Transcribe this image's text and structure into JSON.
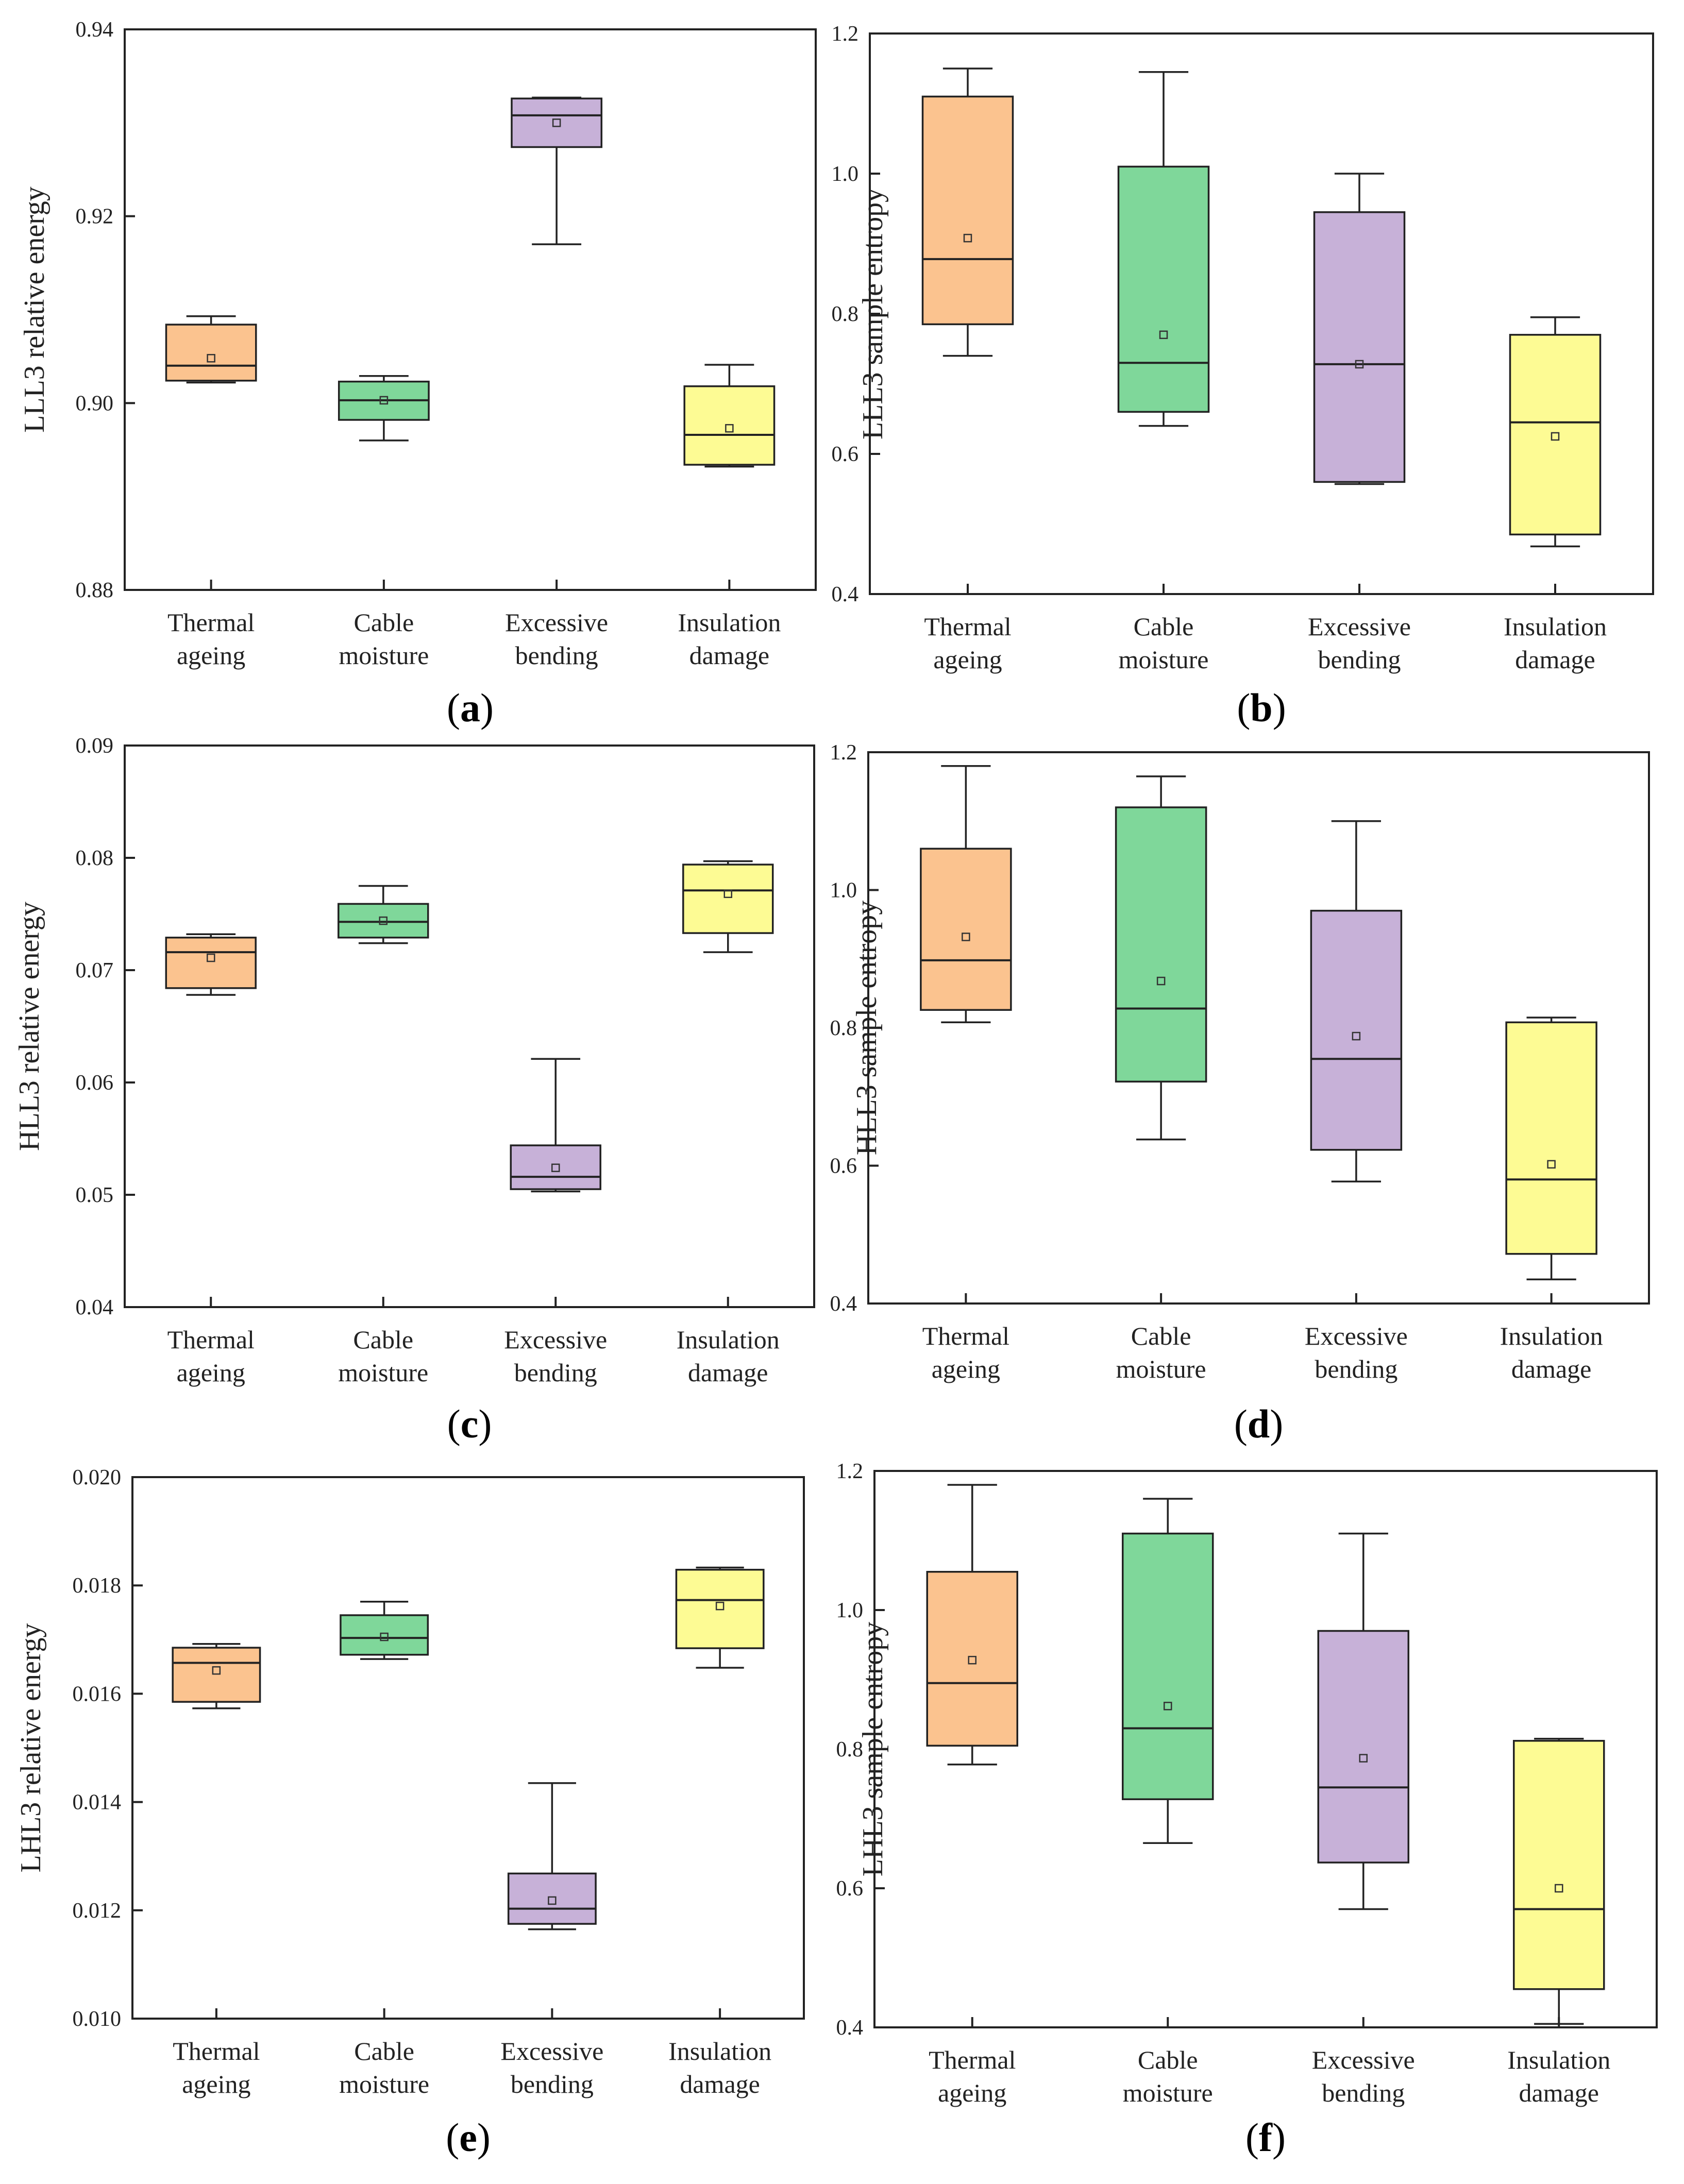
{
  "figure": {
    "colors": {
      "Thermal ageing": "#fbc38f",
      "Cable moisture": "#7fd79a",
      "Excessive bending": "#c7b1d8",
      "Insulation damage": "#fdfb94"
    }
  },
  "chart_data": [
    {
      "id": "a",
      "panel": "a",
      "type": "box",
      "ylabel": "LLL3 relative energy",
      "ylim": [
        0.88,
        0.94
      ],
      "yticks": [
        "0.88",
        "0.90",
        "0.92",
        "0.94"
      ],
      "categories": [
        [
          "Thermal",
          "ageing"
        ],
        [
          "Cable",
          "moisture"
        ],
        [
          "Excessive",
          "bending"
        ],
        [
          "Insulation",
          "damage"
        ]
      ],
      "boxes": [
        {
          "min": 0.9022,
          "q1": 0.9024,
          "median": 0.904,
          "q3": 0.9084,
          "max": 0.9093,
          "mean": 0.9048
        },
        {
          "min": 0.896,
          "q1": 0.8982,
          "median": 0.9003,
          "q3": 0.9023,
          "max": 0.9029,
          "mean": 0.9003
        },
        {
          "min": 0.917,
          "q1": 0.9274,
          "median": 0.9308,
          "q3": 0.9326,
          "max": 0.9327,
          "mean": 0.93
        },
        {
          "min": 0.8932,
          "q1": 0.8934,
          "median": 0.8966,
          "q3": 0.9018,
          "max": 0.9041,
          "mean": 0.8973
        }
      ]
    },
    {
      "id": "b",
      "panel": "b",
      "type": "box",
      "ylabel": "LLL3 sample entropy",
      "ylim": [
        0.4,
        1.2
      ],
      "yticks": [
        "0.4",
        "0.6",
        "0.8",
        "1.0",
        "1.2"
      ],
      "categories": [
        [
          "Thermal",
          "ageing"
        ],
        [
          "Cable",
          "moisture"
        ],
        [
          "Excessive",
          "bending"
        ],
        [
          "Insulation",
          "damage"
        ]
      ],
      "boxes": [
        {
          "min": 0.74,
          "q1": 0.785,
          "median": 0.878,
          "q3": 1.11,
          "max": 1.15,
          "mean": 0.908
        },
        {
          "min": 0.64,
          "q1": 0.66,
          "median": 0.73,
          "q3": 1.01,
          "max": 1.145,
          "mean": 0.77
        },
        {
          "min": 0.557,
          "q1": 0.56,
          "median": 0.728,
          "q3": 0.945,
          "max": 1.0,
          "mean": 0.728
        },
        {
          "min": 0.468,
          "q1": 0.485,
          "median": 0.645,
          "q3": 0.77,
          "max": 0.795,
          "mean": 0.625
        }
      ]
    },
    {
      "id": "c",
      "panel": "c",
      "type": "box",
      "ylabel": "HLL3 relative energy",
      "ylim": [
        0.04,
        0.09
      ],
      "yticks": [
        "0.04",
        "0.05",
        "0.06",
        "0.07",
        "0.08",
        "0.09"
      ],
      "categories": [
        [
          "Thermal",
          "ageing"
        ],
        [
          "Cable",
          "moisture"
        ],
        [
          "Excessive",
          "bending"
        ],
        [
          "Insulation",
          "damage"
        ]
      ],
      "boxes": [
        {
          "min": 0.0678,
          "q1": 0.0684,
          "median": 0.0716,
          "q3": 0.0729,
          "max": 0.0732,
          "mean": 0.0711
        },
        {
          "min": 0.0724,
          "q1": 0.0729,
          "median": 0.0743,
          "q3": 0.0759,
          "max": 0.0775,
          "mean": 0.0744
        },
        {
          "min": 0.0503,
          "q1": 0.0505,
          "median": 0.0516,
          "q3": 0.0544,
          "max": 0.0621,
          "mean": 0.0524
        },
        {
          "min": 0.0716,
          "q1": 0.0733,
          "median": 0.0771,
          "q3": 0.0794,
          "max": 0.0797,
          "mean": 0.0768
        }
      ]
    },
    {
      "id": "d",
      "panel": "d",
      "type": "box",
      "ylabel": "HLL3 sample entropy",
      "ylim": [
        0.4,
        1.2
      ],
      "yticks": [
        "0.4",
        "0.6",
        "0.8",
        "1.0",
        "1.2"
      ],
      "categories": [
        [
          "Thermal",
          "ageing"
        ],
        [
          "Cable",
          "moisture"
        ],
        [
          "Excessive",
          "bending"
        ],
        [
          "Insulation",
          "damage"
        ]
      ],
      "boxes": [
        {
          "min": 0.808,
          "q1": 0.826,
          "median": 0.898,
          "q3": 1.06,
          "max": 1.18,
          "mean": 0.932
        },
        {
          "min": 0.638,
          "q1": 0.722,
          "median": 0.828,
          "q3": 1.12,
          "max": 1.165,
          "mean": 0.868
        },
        {
          "min": 0.577,
          "q1": 0.623,
          "median": 0.755,
          "q3": 0.97,
          "max": 1.1,
          "mean": 0.788
        },
        {
          "min": 0.435,
          "q1": 0.472,
          "median": 0.58,
          "q3": 0.808,
          "max": 0.815,
          "mean": 0.602
        }
      ]
    },
    {
      "id": "e",
      "panel": "e",
      "type": "box",
      "ylabel": "LHL3 relative energy",
      "ylim": [
        0.01,
        0.02
      ],
      "yticks": [
        "0.010",
        "0.012",
        "0.014",
        "0.016",
        "0.018",
        "0.020"
      ],
      "categories": [
        [
          "Thermal",
          "ageing"
        ],
        [
          "Cable",
          "moisture"
        ],
        [
          "Excessive",
          "bending"
        ],
        [
          "Insulation",
          "damage"
        ]
      ],
      "boxes": [
        {
          "min": 0.01573,
          "q1": 0.01585,
          "median": 0.01657,
          "q3": 0.01685,
          "max": 0.01692,
          "mean": 0.01643
        },
        {
          "min": 0.01664,
          "q1": 0.01672,
          "median": 0.01703,
          "q3": 0.01745,
          "max": 0.0177,
          "mean": 0.01705
        },
        {
          "min": 0.01165,
          "q1": 0.01175,
          "median": 0.01203,
          "q3": 0.01268,
          "max": 0.01435,
          "mean": 0.01218
        },
        {
          "min": 0.01648,
          "q1": 0.01684,
          "median": 0.01773,
          "q3": 0.01829,
          "max": 0.01833,
          "mean": 0.01762
        }
      ]
    },
    {
      "id": "f",
      "panel": "f",
      "type": "box",
      "ylabel": "LHL3 sample entropy",
      "ylim": [
        0.4,
        1.2
      ],
      "yticks": [
        "0.4",
        "0.6",
        "0.8",
        "1.0",
        "1.2"
      ],
      "categories": [
        [
          "Thermal",
          "ageing"
        ],
        [
          "Cable",
          "moisture"
        ],
        [
          "Excessive",
          "bending"
        ],
        [
          "Insulation",
          "damage"
        ]
      ],
      "boxes": [
        {
          "min": 0.778,
          "q1": 0.805,
          "median": 0.895,
          "q3": 1.055,
          "max": 1.18,
          "mean": 0.928
        },
        {
          "min": 0.665,
          "q1": 0.728,
          "median": 0.83,
          "q3": 1.11,
          "max": 1.16,
          "mean": 0.862
        },
        {
          "min": 0.57,
          "q1": 0.637,
          "median": 0.745,
          "q3": 0.97,
          "max": 1.11,
          "mean": 0.787
        },
        {
          "min": 0.405,
          "q1": 0.455,
          "median": 0.57,
          "q3": 0.812,
          "max": 0.815,
          "mean": 0.6
        }
      ]
    }
  ]
}
